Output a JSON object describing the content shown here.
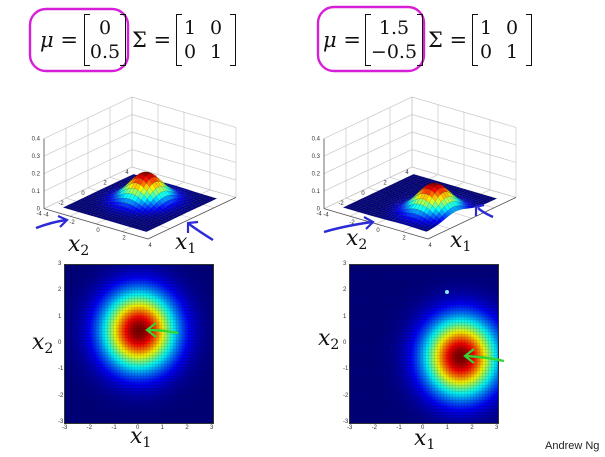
{
  "credit": "Andrew Ng",
  "examples": [
    {
      "mu_symbol": "μ",
      "mu_values": [
        "0",
        "0.5"
      ],
      "sigma_symbol": "Σ",
      "sigma_matrix": [
        [
          "1",
          "0"
        ],
        [
          "0",
          "1"
        ]
      ],
      "plot3d_z_ticks": [
        "0.4",
        "0.3",
        "0.2",
        "0.1",
        "0"
      ],
      "plot3d_x2_ticks": [
        "4",
        "2",
        "0",
        "-2",
        "-4"
      ],
      "plot3d_x1_ticks": [
        "-4",
        "-2",
        "0",
        "2",
        "4"
      ],
      "heatmap_y_ticks": [
        "3",
        "2",
        "1",
        "0",
        "-1",
        "-2",
        "-3"
      ],
      "heatmap_x_ticks": [
        "-3",
        "-2",
        "-1",
        "0",
        "1",
        "2",
        "3"
      ],
      "label_x1": "x",
      "label_x1_sub": "1",
      "label_x2": "x",
      "label_x2_sub": "2",
      "mean": [
        0,
        0.5
      ]
    },
    {
      "mu_symbol": "μ",
      "mu_values": [
        "1.5",
        "−0.5"
      ],
      "sigma_symbol": "Σ",
      "sigma_matrix": [
        [
          "1",
          "0"
        ],
        [
          "0",
          "1"
        ]
      ],
      "plot3d_z_ticks": [
        "0.4",
        "0.3",
        "0.2",
        "0.1",
        "0"
      ],
      "plot3d_x2_ticks": [
        "4",
        "2",
        "0",
        "-2",
        "-4"
      ],
      "plot3d_x1_ticks": [
        "-4",
        "-2",
        "0",
        "2",
        "4"
      ],
      "heatmap_y_ticks": [
        "3",
        "2",
        "1",
        "0",
        "-1",
        "-2",
        "-3"
      ],
      "heatmap_x_ticks": [
        "-3",
        "-2",
        "-1",
        "0",
        "1",
        "2",
        "3"
      ],
      "label_x1": "x",
      "label_x1_sub": "1",
      "label_x2": "x",
      "label_x2_sub": "2",
      "mean": [
        1.5,
        -0.5
      ]
    }
  ],
  "colors": {
    "highlight": "#d81fd8",
    "annotation_blue": "#2b2bd6",
    "annotation_green": "#33d633"
  }
}
